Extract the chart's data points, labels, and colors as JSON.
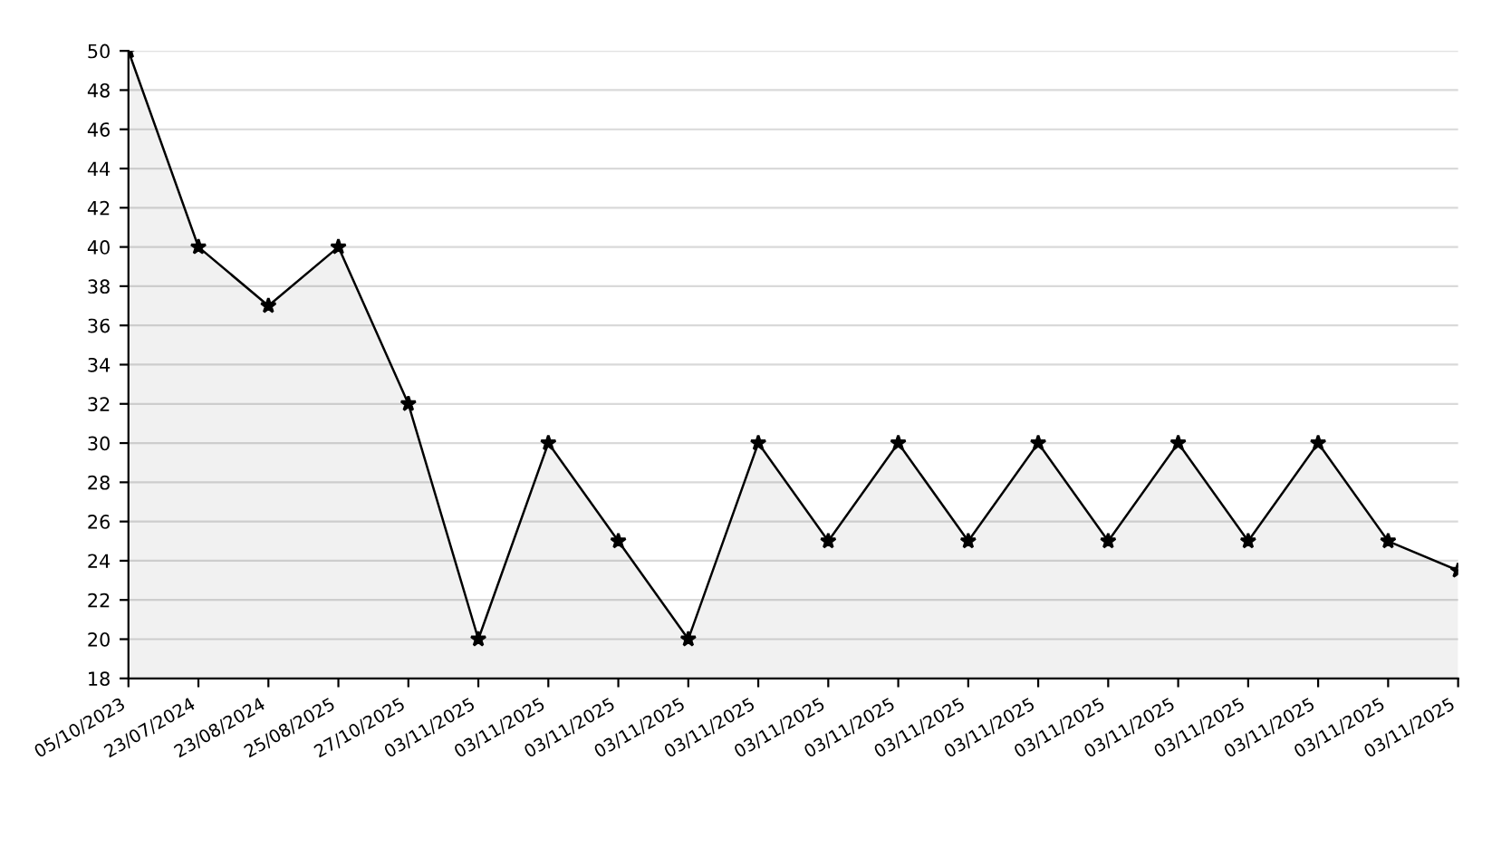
{
  "chart_data": {
    "type": "area",
    "categories": [
      "05/10/2023",
      "23/07/2024",
      "23/08/2024",
      "25/08/2025",
      "27/10/2025",
      "03/11/2025",
      "03/11/2025",
      "03/11/2025",
      "03/11/2025",
      "03/11/2025",
      "03/11/2025",
      "03/11/2025",
      "03/11/2025",
      "03/11/2025",
      "03/11/2025",
      "03/11/2025",
      "03/11/2025",
      "03/11/2025",
      "03/11/2025",
      "03/11/2025"
    ],
    "series": [
      {
        "color": "#000000",
        "values": [
          50,
          40,
          37,
          40,
          32,
          20,
          30,
          25,
          20,
          30,
          25,
          30,
          25,
          30,
          25,
          30,
          25,
          30,
          25,
          23.5
        ]
      }
    ],
    "ylim": [
      18,
      50
    ],
    "yticks": [
      18,
      20,
      22,
      24,
      26,
      28,
      30,
      32,
      34,
      36,
      38,
      40,
      42,
      44,
      46,
      48,
      50
    ],
    "grid": "y",
    "marker": "star",
    "line_style": "solid",
    "legend": false
  }
}
